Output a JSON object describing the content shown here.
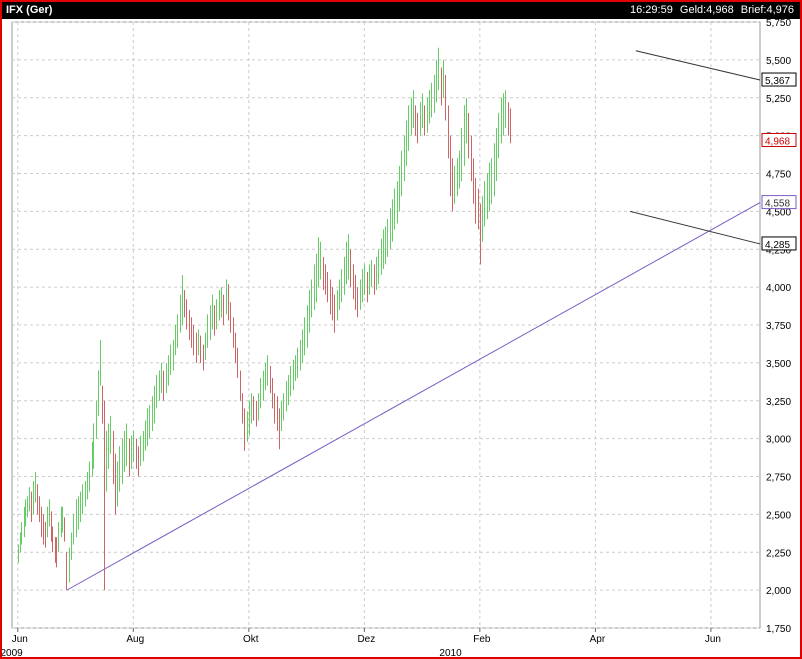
{
  "header": {
    "symbol": "IFX (Ger)",
    "time": "16:29:59",
    "bid_label": "Geld:",
    "bid": "4,968",
    "ask_label": "Brief:",
    "ask": "4,976"
  },
  "chart_data": {
    "type": "bar",
    "subtype": "ohlc-high-low",
    "colors": {
      "up": "#66cc66",
      "down": "#cc6666",
      "trendline": "#7a5cc4",
      "channel": "#333333",
      "last": "#cc0000",
      "grid": "#cccccc"
    },
    "y_ticks": [
      "5,750",
      "5,500",
      "5,250",
      "5,000",
      "4,750",
      "4,500",
      "4,250",
      "4,000",
      "3,750",
      "3,500",
      "3,250",
      "3,000",
      "2,750",
      "2,500",
      "2,250",
      "2,000",
      "1,750"
    ],
    "ylim": [
      1.75,
      5.75
    ],
    "x_ticks": [
      {
        "label": "Jun",
        "t": 0
      },
      {
        "label": "Aug",
        "t": 2
      },
      {
        "label": "Okt",
        "t": 4
      },
      {
        "label": "Dez",
        "t": 6
      },
      {
        "label": "Feb",
        "t": 8
      },
      {
        "label": "Apr",
        "t": 10
      },
      {
        "label": "Jun",
        "t": 12
      }
    ],
    "year_labels": [
      {
        "label": "2009",
        "t": -0.3
      },
      {
        "label": "2010",
        "t": 7.3
      }
    ],
    "xlim": [
      -0.1,
      12.85
    ],
    "price_markers": [
      {
        "label": "5,367",
        "value": 5.367,
        "style": "black"
      },
      {
        "label": "4,968",
        "value": 4.968,
        "style": "red"
      },
      {
        "label": "4,558",
        "value": 4.558,
        "style": "purple"
      },
      {
        "label": "4,285",
        "value": 4.285,
        "style": "black"
      }
    ],
    "trendline": [
      [
        0.85,
        2.0
      ],
      [
        12.85,
        4.558
      ]
    ],
    "channel_upper": [
      [
        10.7,
        5.56
      ],
      [
        12.85,
        5.367
      ]
    ],
    "channel_lower": [
      [
        10.6,
        4.5
      ],
      [
        12.85,
        4.285
      ]
    ],
    "grid": true,
    "series_hl": [
      [
        0,
        2.18,
        2.3,
        1
      ],
      [
        0.03,
        2.25,
        2.38,
        1
      ],
      [
        0.06,
        2.3,
        2.45,
        1
      ],
      [
        0.1,
        2.35,
        2.55,
        1
      ],
      [
        0.13,
        2.42,
        2.6,
        1
      ],
      [
        0.16,
        2.48,
        2.62,
        1
      ],
      [
        0.2,
        2.52,
        2.68,
        1
      ],
      [
        0.23,
        2.45,
        2.65,
        -1
      ],
      [
        0.27,
        2.5,
        2.72,
        1
      ],
      [
        0.3,
        2.58,
        2.78,
        1
      ],
      [
        0.33,
        2.5,
        2.7,
        -1
      ],
      [
        0.37,
        2.45,
        2.62,
        -1
      ],
      [
        0.4,
        2.35,
        2.55,
        -1
      ],
      [
        0.43,
        2.3,
        2.5,
        -1
      ],
      [
        0.47,
        2.28,
        2.45,
        -1
      ],
      [
        0.5,
        2.35,
        2.55,
        1
      ],
      [
        0.54,
        2.42,
        2.6,
        1
      ],
      [
        0.57,
        2.32,
        2.52,
        -1
      ],
      [
        0.6,
        2.25,
        2.42,
        -1
      ],
      [
        0.64,
        2.18,
        2.35,
        -1
      ],
      [
        0.67,
        2.15,
        2.35,
        -1
      ],
      [
        0.7,
        2.25,
        2.45,
        1
      ],
      [
        0.74,
        2.35,
        2.55,
        1
      ],
      [
        0.77,
        2.38,
        2.55,
        1
      ],
      [
        0.8,
        2.32,
        2.48,
        -1
      ],
      [
        0.84,
        2.0,
        2.25,
        -1
      ],
      [
        0.88,
        2.05,
        2.28,
        1
      ],
      [
        0.92,
        2.2,
        2.38,
        1
      ],
      [
        0.95,
        2.3,
        2.5,
        1
      ],
      [
        1.0,
        2.35,
        2.6,
        1
      ],
      [
        1.04,
        2.4,
        2.62,
        1
      ],
      [
        1.08,
        2.45,
        2.65,
        1
      ],
      [
        1.12,
        2.5,
        2.7,
        1
      ],
      [
        1.16,
        2.55,
        2.72,
        1
      ],
      [
        1.2,
        2.6,
        2.78,
        1
      ],
      [
        1.24,
        2.65,
        2.85,
        1
      ],
      [
        1.28,
        2.75,
        2.98,
        1
      ],
      [
        1.31,
        2.8,
        3.1,
        1
      ],
      [
        1.35,
        3.0,
        3.25,
        1
      ],
      [
        1.39,
        3.15,
        3.45,
        1
      ],
      [
        1.42,
        3.35,
        3.65,
        1
      ],
      [
        1.46,
        3.1,
        3.35,
        -1
      ],
      [
        1.5,
        2.0,
        3.25,
        -1
      ],
      [
        1.53,
        2.65,
        3.05,
        1
      ],
      [
        1.57,
        2.8,
        3.1,
        1
      ],
      [
        1.6,
        2.9,
        3.15,
        1
      ],
      [
        1.64,
        2.7,
        3.05,
        -1
      ],
      [
        1.68,
        2.5,
        2.9,
        -1
      ],
      [
        1.72,
        2.55,
        2.85,
        1
      ],
      [
        1.76,
        2.65,
        2.95,
        1
      ],
      [
        1.8,
        2.7,
        3.0,
        1
      ],
      [
        1.84,
        2.78,
        3.05,
        1
      ],
      [
        1.88,
        2.82,
        3.1,
        1
      ],
      [
        1.92,
        2.75,
        3.0,
        -1
      ],
      [
        1.96,
        2.8,
        3.02,
        1
      ],
      [
        2.0,
        2.85,
        3.05,
        1
      ],
      [
        2.04,
        2.8,
        3.0,
        -1
      ],
      [
        2.08,
        2.75,
        2.95,
        -1
      ],
      [
        2.12,
        2.82,
        3.02,
        1
      ],
      [
        2.16,
        2.85,
        3.05,
        1
      ],
      [
        2.2,
        2.92,
        3.12,
        1
      ],
      [
        2.24,
        2.95,
        3.2,
        1
      ],
      [
        2.28,
        3.0,
        3.22,
        1
      ],
      [
        2.32,
        3.05,
        3.28,
        1
      ],
      [
        2.36,
        3.1,
        3.35,
        1
      ],
      [
        2.4,
        3.2,
        3.42,
        1
      ],
      [
        2.44,
        3.25,
        3.45,
        1
      ],
      [
        2.48,
        3.3,
        3.5,
        1
      ],
      [
        2.52,
        3.25,
        3.45,
        -1
      ],
      [
        2.56,
        3.3,
        3.5,
        1
      ],
      [
        2.6,
        3.35,
        3.55,
        1
      ],
      [
        2.64,
        3.42,
        3.62,
        1
      ],
      [
        2.68,
        3.45,
        3.65,
        1
      ],
      [
        2.72,
        3.55,
        3.75,
        1
      ],
      [
        2.76,
        3.6,
        3.82,
        1
      ],
      [
        2.8,
        3.7,
        3.95,
        1
      ],
      [
        2.84,
        3.75,
        4.08,
        1
      ],
      [
        2.88,
        3.8,
        3.98,
        -1
      ],
      [
        2.92,
        3.72,
        3.92,
        -1
      ],
      [
        2.96,
        3.65,
        3.85,
        -1
      ],
      [
        3.0,
        3.6,
        3.8,
        -1
      ],
      [
        3.04,
        3.55,
        3.75,
        -1
      ],
      [
        3.08,
        3.5,
        3.7,
        -1
      ],
      [
        3.12,
        3.55,
        3.72,
        1
      ],
      [
        3.16,
        3.5,
        3.68,
        -1
      ],
      [
        3.2,
        3.45,
        3.62,
        -1
      ],
      [
        3.24,
        3.52,
        3.7,
        1
      ],
      [
        3.28,
        3.6,
        3.82,
        1
      ],
      [
        3.32,
        3.65,
        3.88,
        1
      ],
      [
        3.36,
        3.72,
        3.95,
        1
      ],
      [
        3.4,
        3.68,
        3.88,
        -1
      ],
      [
        3.44,
        3.72,
        3.92,
        1
      ],
      [
        3.48,
        3.78,
        3.98,
        1
      ],
      [
        3.52,
        3.8,
        4.0,
        1
      ],
      [
        3.56,
        3.75,
        3.95,
        -1
      ],
      [
        3.6,
        3.82,
        4.05,
        1
      ],
      [
        3.64,
        3.78,
        4.02,
        -1
      ],
      [
        3.68,
        3.7,
        3.9,
        -1
      ],
      [
        3.72,
        3.6,
        3.8,
        -1
      ],
      [
        3.76,
        3.5,
        3.7,
        -1
      ],
      [
        3.8,
        3.4,
        3.6,
        -1
      ],
      [
        3.84,
        3.25,
        3.45,
        -1
      ],
      [
        3.88,
        3.1,
        3.3,
        -1
      ],
      [
        3.92,
        2.92,
        3.2,
        -1
      ],
      [
        3.96,
        2.98,
        3.18,
        1
      ],
      [
        4.0,
        3.02,
        3.25,
        1
      ],
      [
        4.04,
        3.1,
        3.3,
        1
      ],
      [
        4.08,
        3.12,
        3.28,
        -1
      ],
      [
        4.12,
        3.08,
        3.25,
        -1
      ],
      [
        4.16,
        3.12,
        3.3,
        1
      ],
      [
        4.2,
        3.2,
        3.4,
        1
      ],
      [
        4.24,
        3.25,
        3.45,
        1
      ],
      [
        4.28,
        3.32,
        3.5,
        1
      ],
      [
        4.32,
        3.35,
        3.55,
        1
      ],
      [
        4.36,
        3.3,
        3.48,
        -1
      ],
      [
        4.4,
        3.2,
        3.4,
        -1
      ],
      [
        4.44,
        3.1,
        3.3,
        -1
      ],
      [
        4.48,
        3.05,
        3.28,
        -1
      ],
      [
        4.52,
        2.93,
        3.2,
        -1
      ],
      [
        4.56,
        3.05,
        3.25,
        1
      ],
      [
        4.6,
        3.12,
        3.3,
        1
      ],
      [
        4.64,
        3.18,
        3.38,
        1
      ],
      [
        4.68,
        3.22,
        3.42,
        1
      ],
      [
        4.72,
        3.28,
        3.48,
        1
      ],
      [
        4.76,
        3.32,
        3.52,
        1
      ],
      [
        4.8,
        3.38,
        3.55,
        1
      ],
      [
        4.84,
        3.4,
        3.6,
        1
      ],
      [
        4.88,
        3.45,
        3.65,
        1
      ],
      [
        4.92,
        3.5,
        3.72,
        1
      ],
      [
        4.96,
        3.55,
        3.8,
        1
      ],
      [
        5.0,
        3.6,
        3.88,
        1
      ],
      [
        5.04,
        3.7,
        3.98,
        1
      ],
      [
        5.08,
        3.8,
        4.05,
        1
      ],
      [
        5.12,
        3.85,
        4.15,
        1
      ],
      [
        5.16,
        3.9,
        4.22,
        1
      ],
      [
        5.2,
        4.0,
        4.33,
        1
      ],
      [
        5.24,
        4.05,
        4.3,
        1
      ],
      [
        5.28,
        3.98,
        4.2,
        -1
      ],
      [
        5.32,
        3.95,
        4.15,
        -1
      ],
      [
        5.36,
        3.9,
        4.1,
        -1
      ],
      [
        5.4,
        3.82,
        4.05,
        -1
      ],
      [
        5.44,
        3.78,
        4.0,
        -1
      ],
      [
        5.48,
        3.7,
        3.95,
        -1
      ],
      [
        5.52,
        3.78,
        3.98,
        1
      ],
      [
        5.56,
        3.85,
        4.05,
        1
      ],
      [
        5.6,
        3.9,
        4.12,
        1
      ],
      [
        5.64,
        3.95,
        4.2,
        1
      ],
      [
        5.68,
        4.02,
        4.3,
        1
      ],
      [
        5.72,
        4.05,
        4.35,
        1
      ],
      [
        5.76,
        4.0,
        4.25,
        -1
      ],
      [
        5.8,
        3.92,
        4.15,
        -1
      ],
      [
        5.84,
        3.85,
        4.08,
        -1
      ],
      [
        5.88,
        3.8,
        4.0,
        -1
      ],
      [
        5.92,
        3.85,
        4.05,
        1
      ],
      [
        5.96,
        3.9,
        4.12,
        1
      ],
      [
        6.0,
        3.95,
        4.15,
        1
      ],
      [
        6.04,
        3.9,
        4.1,
        -1
      ],
      [
        6.08,
        3.95,
        4.15,
        1
      ],
      [
        6.12,
        4.0,
        4.18,
        1
      ],
      [
        6.16,
        3.95,
        4.15,
        -1
      ],
      [
        6.2,
        3.98,
        4.2,
        1
      ],
      [
        6.24,
        4.02,
        4.25,
        1
      ],
      [
        6.28,
        4.08,
        4.32,
        1
      ],
      [
        6.32,
        4.12,
        4.38,
        1
      ],
      [
        6.36,
        4.15,
        4.4,
        1
      ],
      [
        6.4,
        4.2,
        4.45,
        1
      ],
      [
        6.44,
        4.25,
        4.52,
        1
      ],
      [
        6.48,
        4.3,
        4.58,
        1
      ],
      [
        6.52,
        4.38,
        4.65,
        1
      ],
      [
        6.56,
        4.42,
        4.7,
        1
      ],
      [
        6.6,
        4.5,
        4.8,
        1
      ],
      [
        6.64,
        4.6,
        4.9,
        1
      ],
      [
        6.68,
        4.7,
        5.0,
        1
      ],
      [
        6.72,
        4.8,
        5.1,
        1
      ],
      [
        6.76,
        4.9,
        5.2,
        1
      ],
      [
        6.8,
        5.0,
        5.25,
        1
      ],
      [
        6.84,
        5.05,
        5.3,
        1
      ],
      [
        6.88,
        5.0,
        5.2,
        -1
      ],
      [
        6.92,
        4.95,
        5.15,
        -1
      ],
      [
        6.96,
        5.0,
        5.22,
        1
      ],
      [
        7.0,
        5.05,
        5.28,
        1
      ],
      [
        7.04,
        5.0,
        5.2,
        -1
      ],
      [
        7.08,
        5.02,
        5.25,
        1
      ],
      [
        7.12,
        5.08,
        5.3,
        1
      ],
      [
        7.16,
        5.12,
        5.35,
        1
      ],
      [
        7.2,
        5.15,
        5.4,
        1
      ],
      [
        7.24,
        5.22,
        5.5,
        1
      ],
      [
        7.28,
        5.3,
        5.58,
        1
      ],
      [
        7.32,
        5.2,
        5.45,
        -1
      ],
      [
        7.36,
        5.25,
        5.5,
        1
      ],
      [
        7.4,
        5.1,
        5.4,
        -1
      ],
      [
        7.44,
        4.85,
        5.2,
        -1
      ],
      [
        7.48,
        4.6,
        5.0,
        -1
      ],
      [
        7.52,
        4.5,
        4.85,
        -1
      ],
      [
        7.56,
        4.55,
        4.8,
        1
      ],
      [
        7.6,
        4.6,
        4.85,
        1
      ],
      [
        7.64,
        4.65,
        4.9,
        1
      ],
      [
        7.68,
        4.7,
        5.05,
        1
      ],
      [
        7.72,
        4.8,
        5.2,
        1
      ],
      [
        7.76,
        4.95,
        5.25,
        1
      ],
      [
        7.8,
        4.85,
        5.15,
        -1
      ],
      [
        7.84,
        4.7,
        5.0,
        -1
      ],
      [
        7.88,
        4.55,
        4.85,
        -1
      ],
      [
        7.92,
        4.42,
        4.72,
        -1
      ],
      [
        7.96,
        4.38,
        4.65,
        -1
      ],
      [
        8.0,
        4.15,
        4.55,
        -1
      ],
      [
        8.04,
        4.3,
        4.6,
        1
      ],
      [
        8.08,
        4.4,
        4.7,
        1
      ],
      [
        8.12,
        4.45,
        4.75,
        1
      ],
      [
        8.16,
        4.5,
        4.82,
        1
      ],
      [
        8.2,
        4.55,
        4.85,
        1
      ],
      [
        8.24,
        4.6,
        4.95,
        1
      ],
      [
        8.28,
        4.7,
        5.05,
        1
      ],
      [
        8.32,
        4.85,
        5.15,
        1
      ],
      [
        8.36,
        4.95,
        5.25,
        1
      ],
      [
        8.4,
        5.0,
        5.28,
        1
      ],
      [
        8.44,
        5.05,
        5.3,
        1
      ],
      [
        8.48,
        5.0,
        5.22,
        -1
      ],
      [
        8.52,
        4.95,
        5.18,
        -1
      ]
    ]
  }
}
